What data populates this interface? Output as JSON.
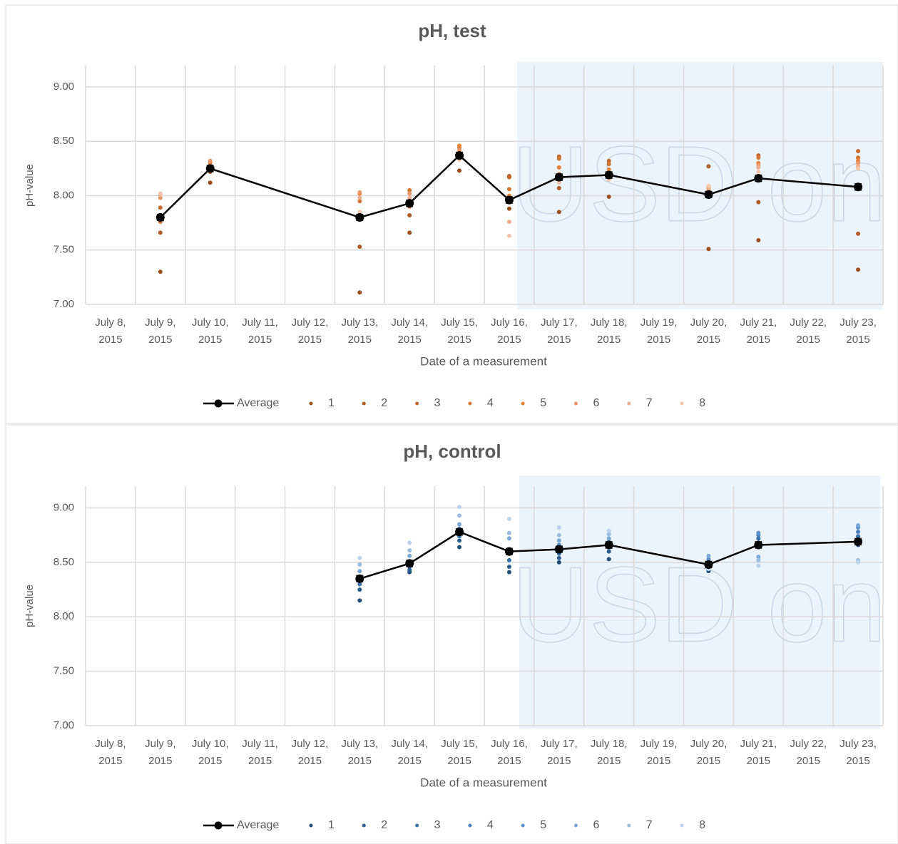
{
  "chart_data": [
    {
      "type": "line",
      "title": "pH, test",
      "y_label": "pH-value",
      "x_label": "Date of a measurement",
      "watermark": "USD on",
      "categories": [
        "July 8, 2015",
        "July 9, 2015",
        "July 10, 2015",
        "July 11, 2015",
        "July 12, 2015",
        "July 13, 2015",
        "July 14, 2015",
        "July 15, 2015",
        "July 16, 2015",
        "July 17, 2015",
        "July 18, 2015",
        "July 19, 2015",
        "July 20, 2015",
        "July 21, 2015",
        "July 22, 2015",
        "July 23, 2015"
      ],
      "ylim": [
        7,
        9.2
      ],
      "yticks": [
        {
          "value": 7,
          "label": "7.00"
        },
        {
          "value": 7.5,
          "label": "7.50"
        },
        {
          "value": 8,
          "label": "8.00"
        },
        {
          "value": 8.5,
          "label": "8.50"
        },
        {
          "value": 9,
          "label": "9.00"
        }
      ],
      "grid": true,
      "legend": "bottom",
      "connect_gaps": true,
      "series": [
        {
          "name": "Average",
          "type": "line",
          "color": "#000000",
          "values": [
            null,
            7.8,
            8.25,
            null,
            null,
            7.8,
            7.93,
            8.37,
            7.96,
            8.17,
            8.19,
            null,
            8.01,
            8.16,
            null,
            8.08
          ],
          "errors": [
            null,
            0.03,
            0.03,
            null,
            null,
            0.03,
            0.03,
            0.03,
            0.03,
            0.03,
            0.03,
            null,
            0.03,
            0.03,
            null,
            0.03
          ]
        },
        {
          "name": "1",
          "type": "scatter",
          "color": "#9c4f1e",
          "values": [
            null,
            7.3,
            8.12,
            null,
            null,
            7.11,
            7.66,
            8.23,
            7.88,
            7.85,
            7.99,
            null,
            7.51,
            7.59,
            null,
            7.32
          ]
        },
        {
          "name": "2",
          "type": "scatter",
          "color": "#b05b26",
          "values": [
            null,
            7.66,
            8.22,
            null,
            null,
            7.53,
            7.82,
            8.36,
            8.18,
            8.07,
            8.16,
            null,
            8.27,
            7.94,
            null,
            7.65
          ]
        },
        {
          "name": "3",
          "type": "scatter",
          "color": "#c4692d",
          "values": [
            null,
            7.89,
            8.25,
            null,
            null,
            7.8,
            7.9,
            8.4,
            8.17,
            8.36,
            8.32,
            null,
            8.08,
            8.37,
            null,
            8.41
          ]
        },
        {
          "name": "4",
          "type": "scatter",
          "color": "#d27632",
          "values": [
            null,
            7.76,
            8.28,
            null,
            null,
            7.95,
            8.05,
            8.44,
            8.06,
            8.34,
            8.29,
            null,
            8.05,
            8.35,
            null,
            8.35
          ]
        },
        {
          "name": "5",
          "type": "scatter",
          "color": "#e3843a",
          "values": [
            null,
            7.8,
            8.3,
            null,
            null,
            8.02,
            7.93,
            8.46,
            8.0,
            8.26,
            8.24,
            null,
            8.0,
            8.3,
            null,
            8.32
          ]
        },
        {
          "name": "6",
          "type": "scatter",
          "color": "#e99767",
          "values": [
            null,
            7.98,
            8.32,
            null,
            null,
            8.03,
            8.02,
            8.42,
            7.95,
            8.2,
            8.22,
            null,
            8.02,
            8.28,
            null,
            8.3
          ]
        },
        {
          "name": "7",
          "type": "scatter",
          "color": "#efae8f",
          "values": [
            null,
            8.01,
            8.27,
            null,
            null,
            7.98,
            7.98,
            8.38,
            7.76,
            8.15,
            8.18,
            null,
            8.07,
            8.26,
            null,
            8.27
          ]
        },
        {
          "name": "8",
          "type": "scatter",
          "color": "#f5c5aa",
          "values": [
            null,
            8.02,
            8.24,
            null,
            null,
            7.85,
            7.95,
            8.33,
            7.63,
            8.12,
            8.15,
            null,
            8.09,
            8.22,
            null,
            8.25
          ]
        }
      ]
    },
    {
      "type": "line",
      "title": "pH, control",
      "y_label": "pH-value",
      "x_label": "Date of a measurement",
      "watermark": "USD on",
      "categories": [
        "July 8, 2015",
        "July 9, 2015",
        "July 10, 2015",
        "July 11, 2015",
        "July 12, 2015",
        "July 13, 2015",
        "July 14, 2015",
        "July 15, 2015",
        "July 16, 2015",
        "July 17, 2015",
        "July 18, 2015",
        "July 19, 2015",
        "July 20, 2015",
        "July 21, 2015",
        "July 22, 2015",
        "July 23, 2015"
      ],
      "ylim": [
        7,
        9.2
      ],
      "yticks": [
        {
          "value": 7,
          "label": "7.00"
        },
        {
          "value": 7.5,
          "label": "7.50"
        },
        {
          "value": 8,
          "label": "8.00"
        },
        {
          "value": 8.5,
          "label": "8.50"
        },
        {
          "value": 9,
          "label": "9.00"
        }
      ],
      "grid": true,
      "legend": "bottom",
      "connect_gaps": true,
      "series": [
        {
          "name": "Average",
          "type": "line",
          "color": "#000000",
          "values": [
            null,
            null,
            null,
            null,
            null,
            8.35,
            8.49,
            8.78,
            8.6,
            8.62,
            8.66,
            null,
            8.48,
            8.66,
            null,
            8.69
          ],
          "errors": [
            null,
            null,
            null,
            null,
            null,
            0.03,
            0.03,
            0.03,
            0.03,
            0.03,
            0.03,
            null,
            0.03,
            0.03,
            null,
            0.03
          ]
        },
        {
          "name": "1",
          "type": "scatter",
          "color": "#1f4e79",
          "values": [
            null,
            null,
            null,
            null,
            null,
            8.15,
            8.41,
            8.64,
            8.41,
            8.5,
            8.53,
            null,
            8.42,
            8.64,
            null,
            8.66
          ]
        },
        {
          "name": "2",
          "type": "scatter",
          "color": "#2b5e92",
          "values": [
            null,
            null,
            null,
            null,
            null,
            8.25,
            8.43,
            8.7,
            8.46,
            8.54,
            8.6,
            null,
            8.45,
            8.68,
            null,
            8.7
          ]
        },
        {
          "name": "3",
          "type": "scatter",
          "color": "#3870a8",
          "values": [
            null,
            null,
            null,
            null,
            null,
            8.3,
            8.46,
            8.74,
            8.52,
            8.58,
            8.64,
            null,
            8.48,
            8.72,
            null,
            8.74
          ]
        },
        {
          "name": "4",
          "type": "scatter",
          "color": "#4a80bd",
          "values": [
            null,
            null,
            null,
            null,
            null,
            8.33,
            8.48,
            8.78,
            8.58,
            8.62,
            8.66,
            null,
            8.5,
            8.75,
            null,
            8.78
          ]
        },
        {
          "name": "5",
          "type": "scatter",
          "color": "#5b93c9",
          "values": [
            null,
            null,
            null,
            null,
            null,
            8.36,
            8.5,
            8.81,
            8.62,
            8.66,
            8.69,
            null,
            8.53,
            8.77,
            null,
            8.82
          ]
        },
        {
          "name": "6",
          "type": "scatter",
          "color": "#7aa8d6",
          "values": [
            null,
            null,
            null,
            null,
            null,
            8.42,
            8.56,
            8.85,
            8.72,
            8.7,
            8.72,
            null,
            8.56,
            8.55,
            null,
            8.84
          ]
        },
        {
          "name": "7",
          "type": "scatter",
          "color": "#9bbde2",
          "values": [
            null,
            null,
            null,
            null,
            null,
            8.48,
            8.61,
            8.93,
            8.77,
            8.75,
            8.76,
            null,
            8.46,
            8.52,
            null,
            8.52
          ]
        },
        {
          "name": "8",
          "type": "scatter",
          "color": "#bcd2ec",
          "values": [
            null,
            null,
            null,
            null,
            null,
            8.54,
            8.68,
            9.01,
            8.9,
            8.82,
            8.79,
            null,
            8.44,
            8.47,
            null,
            8.5
          ]
        }
      ]
    }
  ]
}
